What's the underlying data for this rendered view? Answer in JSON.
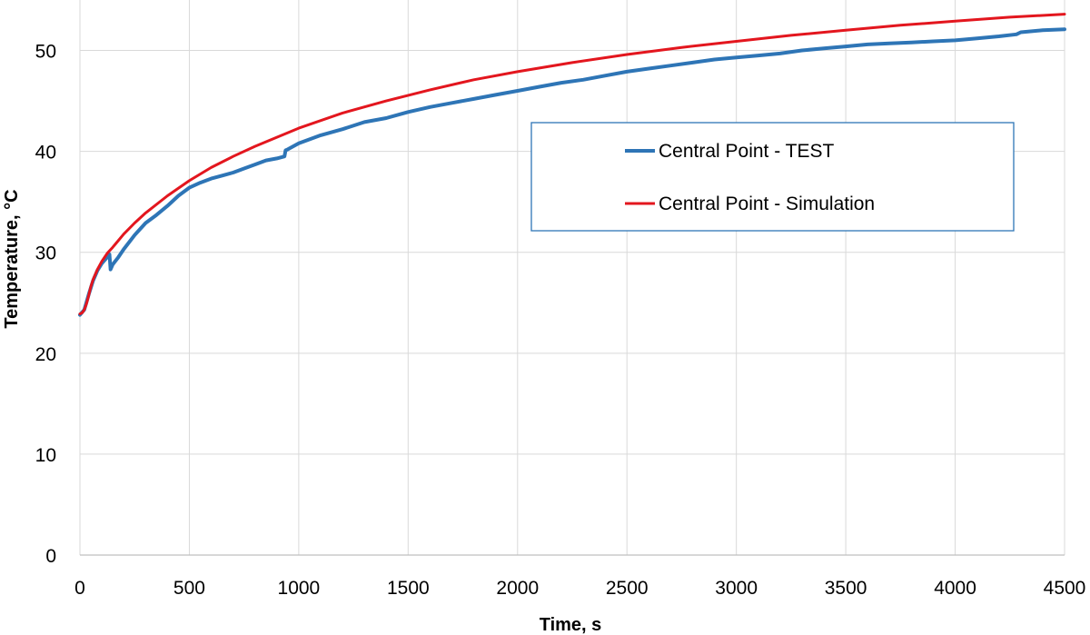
{
  "chart_data": {
    "type": "line",
    "xlabel": "Time, s",
    "ylabel": "Temperature, °C",
    "xlim": [
      0,
      4500
    ],
    "ylim": [
      0,
      55
    ],
    "xticks": [
      0,
      500,
      1000,
      1500,
      2000,
      2500,
      3000,
      3500,
      4000,
      4500
    ],
    "yticks": [
      0,
      10,
      20,
      30,
      40,
      50
    ],
    "grid": true,
    "legend_position": "upper-right",
    "series": [
      {
        "name": "Central Point - TEST",
        "color": "#2E75B6",
        "x": [
          0,
          20,
          40,
          60,
          80,
          100,
          120,
          135,
          140,
          150,
          175,
          200,
          250,
          300,
          350,
          400,
          450,
          500,
          550,
          600,
          650,
          700,
          750,
          800,
          850,
          900,
          935,
          940,
          950,
          1000,
          1100,
          1200,
          1300,
          1400,
          1500,
          1600,
          1700,
          1800,
          1900,
          2000,
          2100,
          2200,
          2300,
          2400,
          2500,
          2600,
          2700,
          2800,
          2900,
          3000,
          3100,
          3200,
          3300,
          3400,
          3500,
          3600,
          3700,
          3800,
          3900,
          4000,
          4100,
          4200,
          4280,
          4300,
          4400,
          4500
        ],
        "y": [
          23.8,
          24.3,
          25.8,
          27.2,
          28.2,
          28.9,
          29.4,
          29.8,
          28.3,
          28.8,
          29.5,
          30.3,
          31.7,
          32.9,
          33.7,
          34.6,
          35.6,
          36.4,
          36.9,
          37.3,
          37.6,
          37.9,
          38.3,
          38.7,
          39.1,
          39.3,
          39.5,
          40.1,
          40.2,
          40.8,
          41.6,
          42.2,
          42.9,
          43.3,
          43.9,
          44.4,
          44.8,
          45.2,
          45.6,
          46.0,
          46.4,
          46.8,
          47.1,
          47.5,
          47.9,
          48.2,
          48.5,
          48.8,
          49.1,
          49.3,
          49.5,
          49.7,
          50.0,
          50.2,
          50.4,
          50.6,
          50.7,
          50.8,
          50.9,
          51.0,
          51.2,
          51.4,
          51.6,
          51.8,
          52.0,
          52.1
        ]
      },
      {
        "name": "Central Point - Simulation",
        "color": "#E3161E",
        "x": [
          0,
          10,
          20,
          30,
          40,
          50,
          60,
          80,
          100,
          125,
          150,
          200,
          250,
          300,
          400,
          500,
          600,
          700,
          800,
          900,
          1000,
          1200,
          1400,
          1600,
          1800,
          2000,
          2250,
          2500,
          2750,
          3000,
          3250,
          3500,
          3750,
          4000,
          4250,
          4500
        ],
        "y": [
          23.9,
          24.0,
          24.3,
          24.9,
          25.7,
          26.6,
          27.3,
          28.3,
          29.1,
          29.9,
          30.5,
          31.8,
          32.9,
          33.9,
          35.6,
          37.1,
          38.4,
          39.5,
          40.5,
          41.4,
          42.3,
          43.8,
          45.0,
          46.1,
          47.1,
          47.9,
          48.8,
          49.6,
          50.3,
          50.9,
          51.5,
          52.0,
          52.5,
          52.9,
          53.3,
          53.6
        ]
      }
    ]
  }
}
